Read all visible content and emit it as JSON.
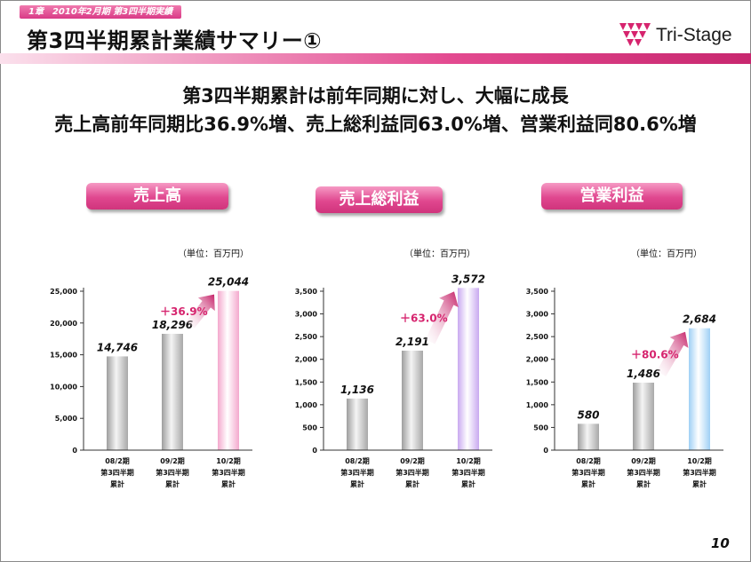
{
  "header": {
    "chapter_tag": "1章　2010年2月期 第3四半期実績",
    "title": "第3四半期累計業績サマリー①",
    "logo_text": "Tri-Stage"
  },
  "headline": {
    "line1": "第3四半期累計は前年同期に対し、大幅に成長",
    "line2": "売上高前年同期比36.9%増、売上総利益同63.0%増、営業利益同80.6%増"
  },
  "page_number": "10",
  "colors": {
    "accent": "#e0478f",
    "bar_gray": "#c8c8c8",
    "bar_pink": "#f4a8cd",
    "bar_purple": "#c9a9f0",
    "bar_blue": "#9fd0f5",
    "growth_text": "#d6246e"
  },
  "chart_data": [
    {
      "type": "bar",
      "title": "売上高",
      "unit_label": "（単位：百万円）",
      "categories": [
        "08/2期\n第3四半期\n累計",
        "09/2期\n第3四半期\n累計",
        "10/2期\n第3四半期\n累計"
      ],
      "values": [
        14746,
        18296,
        25044
      ],
      "value_labels": [
        "14,746",
        "18,296",
        "25,044"
      ],
      "ylim": [
        0,
        25000
      ],
      "yticks": [
        0,
        5000,
        10000,
        15000,
        20000,
        25000
      ],
      "ytick_labels": [
        "0",
        "5,000",
        "10,000",
        "15,000",
        "20,000",
        "25,000"
      ],
      "growth_label": "＋36.9%",
      "highlight_color": "#f4a8cd"
    },
    {
      "type": "bar",
      "title": "売上総利益",
      "unit_label": "（単位：百万円）",
      "categories": [
        "08/2期\n第3四半期\n累計",
        "09/2期\n第3四半期\n累計",
        "10/2期\n第3四半期\n累計"
      ],
      "values": [
        1136,
        2191,
        3572
      ],
      "value_labels": [
        "1,136",
        "2,191",
        "3,572"
      ],
      "ylim": [
        0,
        3500
      ],
      "yticks": [
        0,
        500,
        1000,
        1500,
        2000,
        2500,
        3000,
        3500
      ],
      "ytick_labels": [
        "0",
        "500",
        "1,000",
        "1,500",
        "2,000",
        "2,500",
        "3,000",
        "3,500"
      ],
      "growth_label": "＋63.0%",
      "highlight_color": "#c9a9f0"
    },
    {
      "type": "bar",
      "title": "営業利益",
      "unit_label": "（単位：百万円）",
      "categories": [
        "08/2期\n第3四半期\n累計",
        "09/2期\n第3四半期\n累計",
        "10/2期\n第3四半期\n累計"
      ],
      "values": [
        580,
        1486,
        2684
      ],
      "value_labels": [
        "580",
        "1,486",
        "2,684"
      ],
      "ylim": [
        0,
        3500
      ],
      "yticks": [
        0,
        500,
        1000,
        1500,
        2000,
        2500,
        3000,
        3500
      ],
      "ytick_labels": [
        "0",
        "500",
        "1,000",
        "1,500",
        "2,000",
        "2,500",
        "3,000",
        "3,500"
      ],
      "growth_label": "＋80.6%",
      "highlight_color": "#9fd0f5"
    }
  ]
}
